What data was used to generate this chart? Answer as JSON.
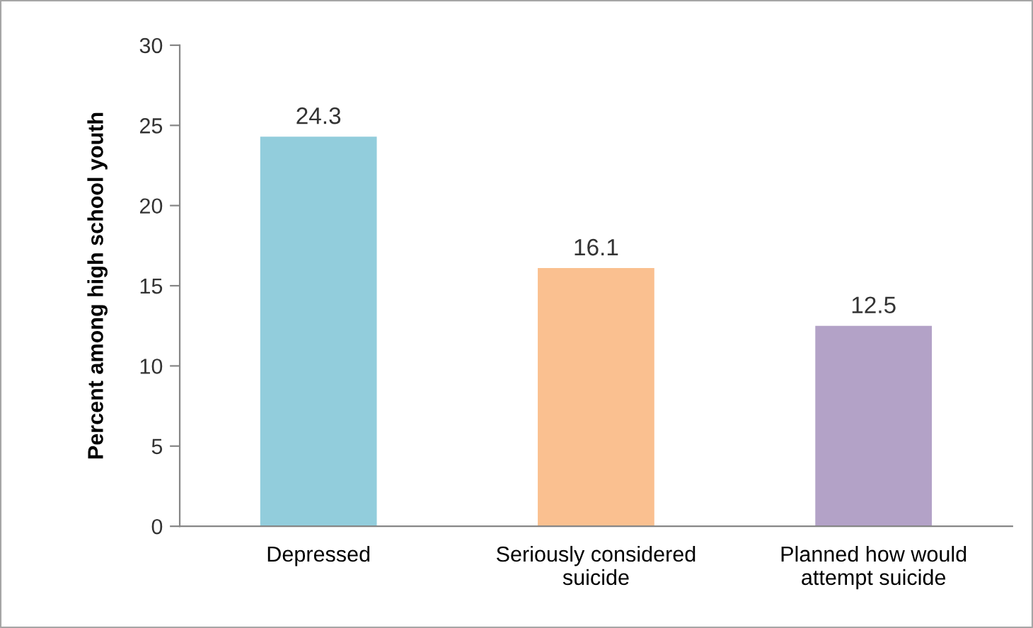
{
  "chart_data": {
    "type": "bar",
    "ylabel": "Percent among high school youth",
    "categories": [
      "Depressed",
      "Seriously considered\nsuicide",
      "Planned how would\nattempt suicide"
    ],
    "values": [
      24.3,
      16.1,
      12.5
    ],
    "colors": [
      "#92cddc",
      "#fac090",
      "#b3a2c7"
    ],
    "ylim": [
      0,
      30
    ],
    "yticks": [
      0,
      5,
      10,
      15,
      20,
      25,
      30
    ],
    "data_labels": true,
    "grid": false,
    "legend": false
  }
}
